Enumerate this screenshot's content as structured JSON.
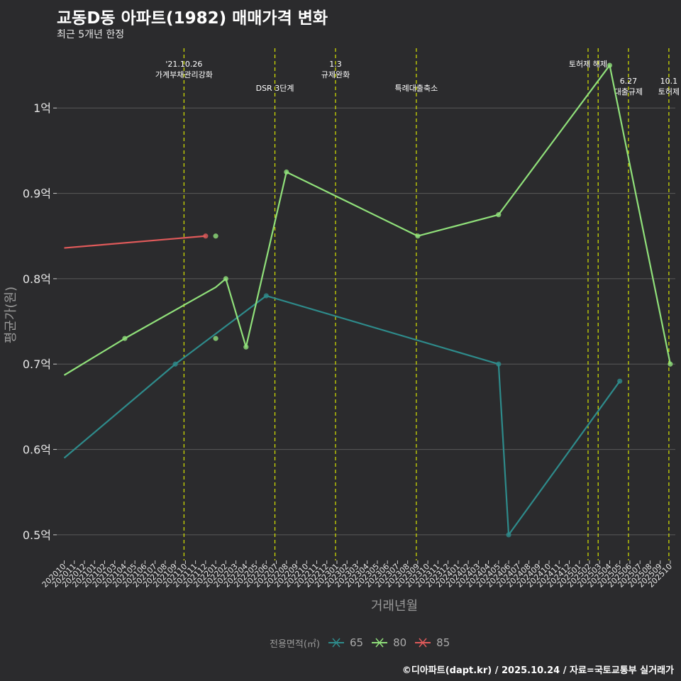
{
  "title": "교동D동 아파트(1982) 매매가격 변화",
  "subtitle": "최근 5개년 한정",
  "caption": "©디아파트(dapt.kr) / 2025.10.24 / 자료=국토교통부 실거래가",
  "colors": {
    "background": "#2b2b2d",
    "grid": "#5a5a5a",
    "event_line": "#d8e600",
    "series_65": "#2e8b8b",
    "series_80": "#90e07a",
    "series_85": "#e05a5a"
  },
  "legend": {
    "title": "전용면적(㎡)",
    "items": [
      {
        "label": "65",
        "color": "#2e8b8b"
      },
      {
        "label": "80",
        "color": "#90e07a"
      },
      {
        "label": "85",
        "color": "#e05a5a"
      }
    ]
  },
  "chart_data": {
    "type": "line",
    "title": "교동D동 아파트(1982) 매매가격 변화",
    "xlabel": "거래년월",
    "ylabel": "평균가(원)",
    "ylim": [
      0.47,
      1.07
    ],
    "yticks": [
      0.5,
      0.6,
      0.7,
      0.8,
      0.9,
      1.0
    ],
    "ytick_labels": [
      "0.5억",
      "0.6억",
      "0.7억",
      "0.8억",
      "0.9억",
      "1억"
    ],
    "x_categories": [
      "202010",
      "202011",
      "202012",
      "202101",
      "202102",
      "202103",
      "202104",
      "202105",
      "202106",
      "202107",
      "202108",
      "202109",
      "202110",
      "202111",
      "202112",
      "202201",
      "202202",
      "202203",
      "202204",
      "202205",
      "202206",
      "202207",
      "202208",
      "202209",
      "202210",
      "202211",
      "202212",
      "202301",
      "202302",
      "202303",
      "202304",
      "202305",
      "202306",
      "202307",
      "202308",
      "202309",
      "202310",
      "202311",
      "202312",
      "202401",
      "202402",
      "202403",
      "202404",
      "202405",
      "202406",
      "202407",
      "202408",
      "202409",
      "202410",
      "202411",
      "202412",
      "202501",
      "202502",
      "202503",
      "202504",
      "202505",
      "202506",
      "202507",
      "202508",
      "202509",
      "202510"
    ],
    "series": [
      {
        "name": "65",
        "line": [
          [
            "202010",
            0.59
          ],
          [
            "202109",
            0.7
          ],
          [
            "202206",
            0.78
          ],
          [
            "202405",
            0.7
          ],
          [
            "202406",
            0.5
          ],
          [
            "202505",
            0.68
          ]
        ],
        "points": [
          [
            "202109",
            0.7
          ],
          [
            "202206",
            0.78
          ],
          [
            "202405",
            0.7
          ],
          [
            "202406",
            0.5
          ],
          [
            "202505",
            0.68
          ]
        ]
      },
      {
        "name": "80",
        "line": [
          [
            "202010",
            0.687
          ],
          [
            "202104",
            0.73
          ],
          [
            "202201",
            0.79
          ],
          [
            "202202",
            0.8
          ],
          [
            "202204",
            0.72
          ],
          [
            "202208",
            0.925
          ],
          [
            "202309",
            0.85
          ],
          [
            "202405",
            0.875
          ],
          [
            "202504",
            1.05
          ],
          [
            "202510",
            0.7
          ]
        ],
        "points": [
          [
            "202104",
            0.73
          ],
          [
            "202202",
            0.8
          ],
          [
            "202204",
            0.72
          ],
          [
            "202208",
            0.925
          ],
          [
            "202309",
            0.85
          ],
          [
            "202405",
            0.875
          ],
          [
            "202504",
            1.05
          ],
          [
            "202510",
            0.7
          ],
          [
            "202201",
            0.85
          ],
          [
            "202201",
            0.73
          ]
        ]
      },
      {
        "name": "85",
        "line": [
          [
            "202010",
            0.836
          ],
          [
            "202112",
            0.85
          ]
        ],
        "points": [
          [
            "202112",
            0.85
          ]
        ]
      }
    ],
    "events": [
      {
        "month": "202110",
        "lines": [
          "'21.10.26",
          "가계부채관리강화"
        ],
        "level": 1
      },
      {
        "month": "202207",
        "lines": [
          "DSR 3단계"
        ],
        "level": 3
      },
      {
        "month": "202301",
        "lines": [
          "1.3",
          "규제완화"
        ],
        "level": 1
      },
      {
        "month": "202309",
        "lines": [
          "특례대출축소"
        ],
        "level": 3
      },
      {
        "month": "202502",
        "lines": [
          "토허제 해제"
        ],
        "level": 1
      },
      {
        "month": "202503",
        "lines": [],
        "level": 1
      },
      {
        "month": "202506",
        "lines": [
          "6.27",
          "대출규제"
        ],
        "level": 2
      },
      {
        "month": "202510",
        "lines": [
          "10.1",
          "토허제"
        ],
        "level": 2
      }
    ]
  }
}
